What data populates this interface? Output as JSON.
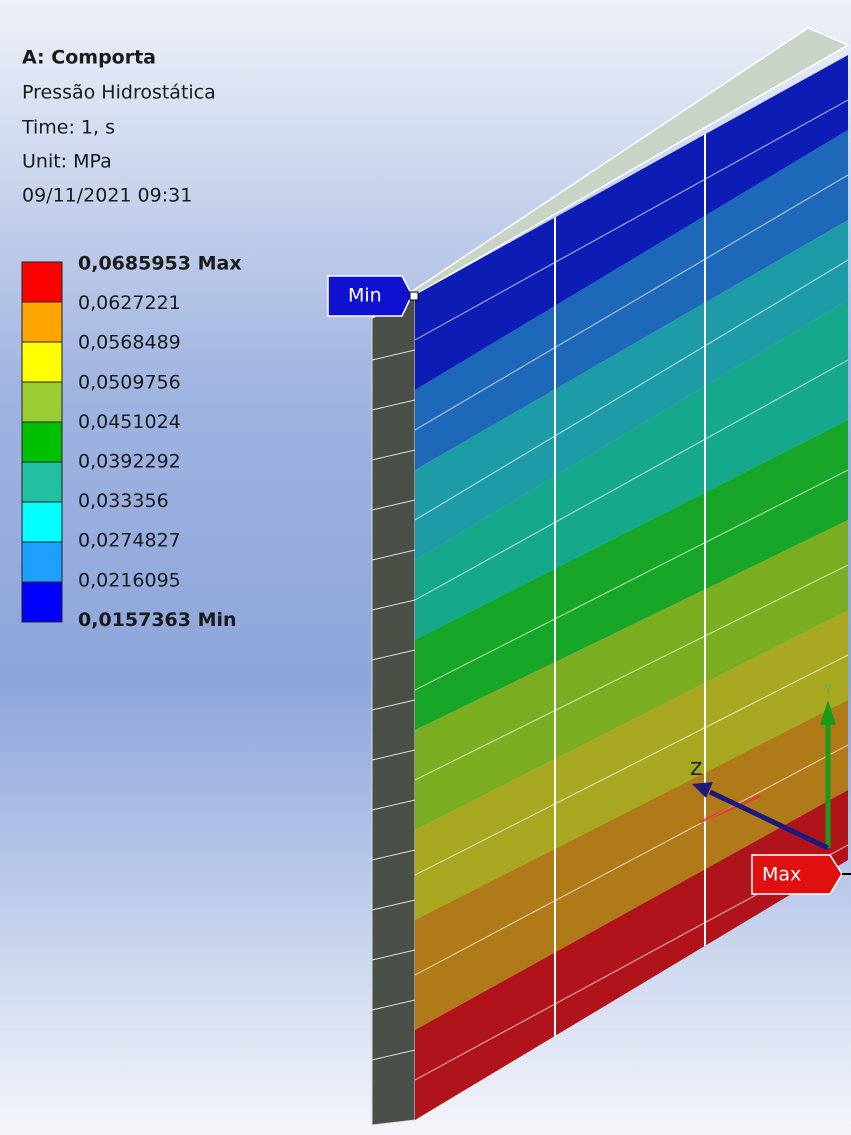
{
  "header": {
    "title": "A: Comporta",
    "result": "Pressão Hidrostática",
    "time": "Time: 1, s",
    "unit": "Unit: MPa",
    "date": "09/11/2021 09:31"
  },
  "legend": {
    "labels": [
      "0,0685953 Max",
      "0,0627221",
      "0,0568489",
      "0,0509756",
      "0,0451024",
      "0,0392292",
      "0,033356",
      "0,0274827",
      "0,0216095",
      "0,0157363 Min"
    ]
  },
  "probes": {
    "min": "Min",
    "max": "Max"
  },
  "triad": {
    "z": "Z",
    "y": "Y"
  }
}
